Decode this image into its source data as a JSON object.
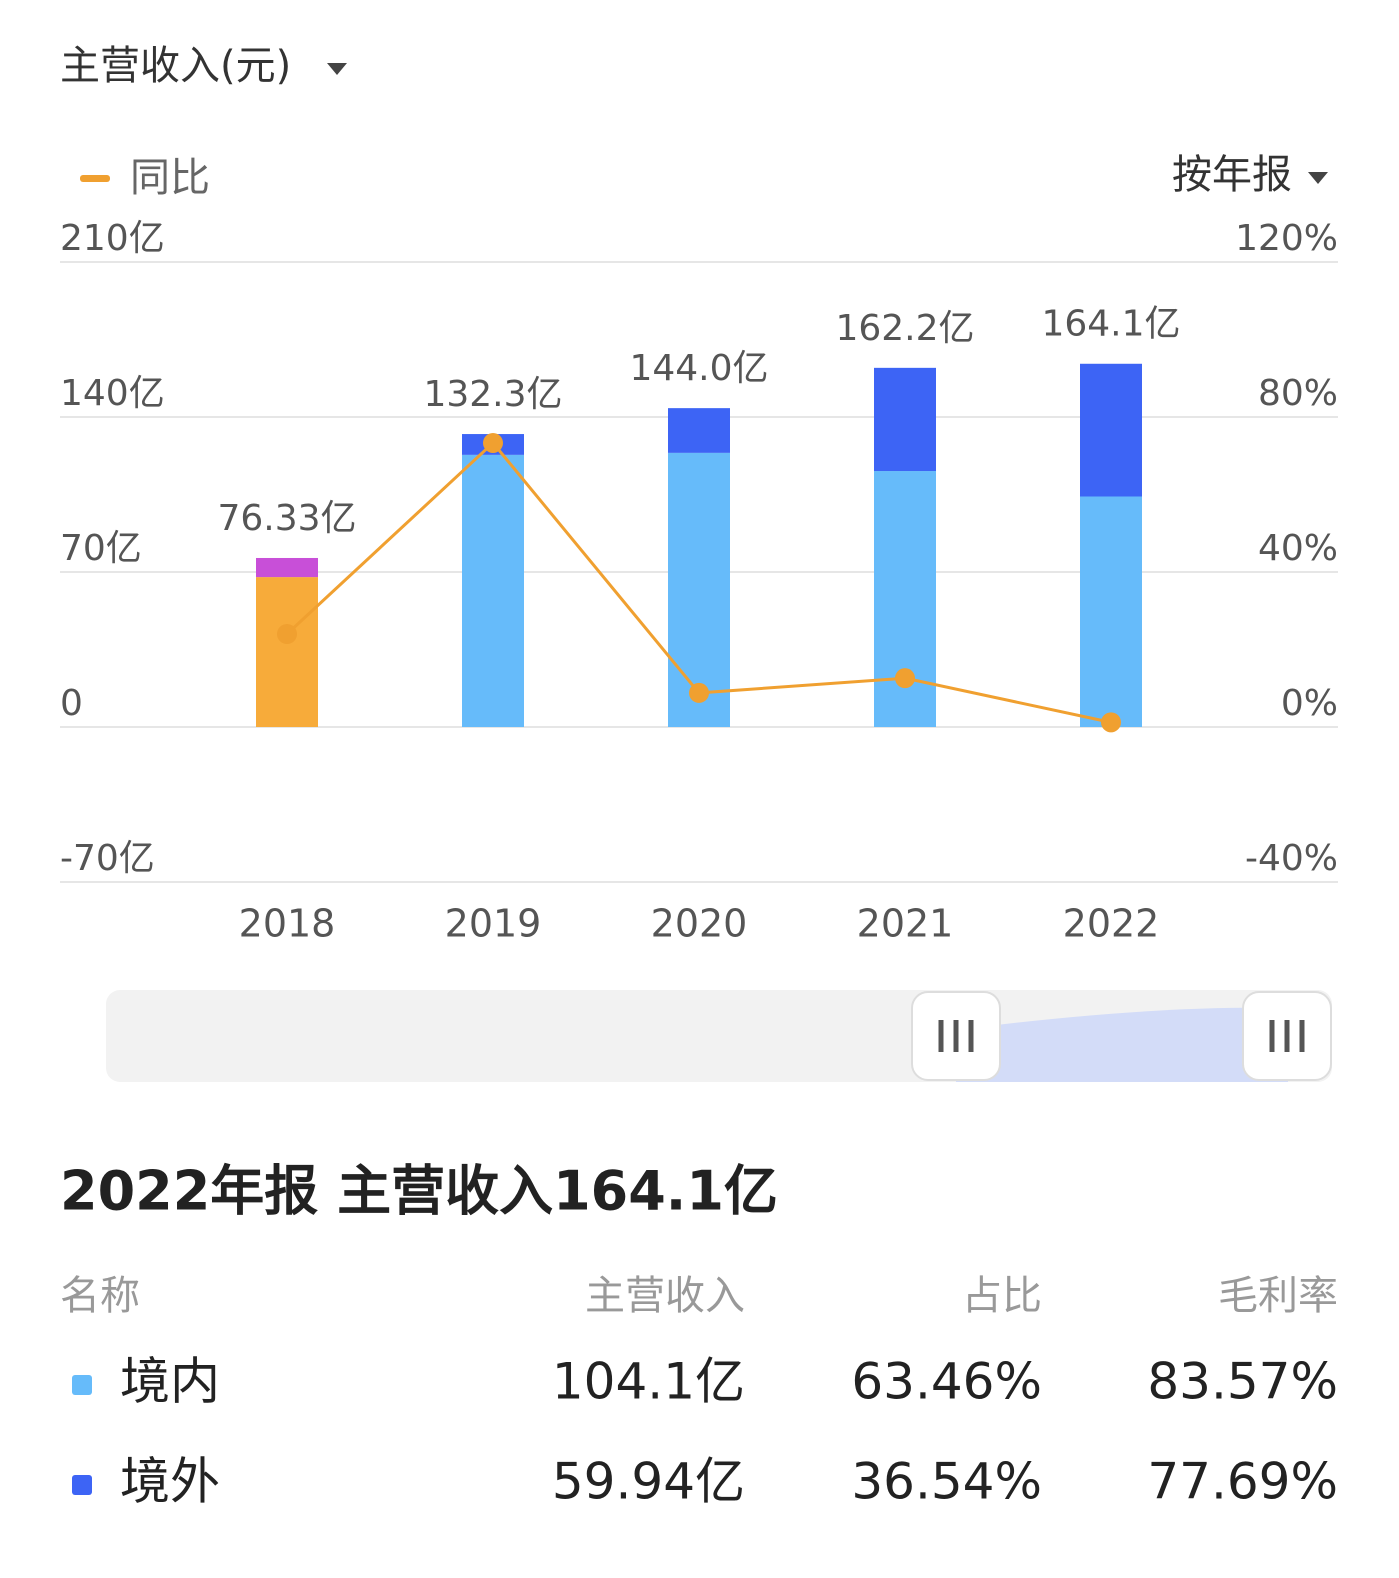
{
  "header": {
    "title": "主营收入(元)",
    "period_selector": "按年报"
  },
  "chart_data": {
    "type": "bar",
    "stacked": true,
    "categories": [
      "2018",
      "2019",
      "2020",
      "2021",
      "2022"
    ],
    "series": [
      {
        "color": "#f7ab3a",
        "values": [
          67.7,
          null,
          null,
          null,
          null
        ]
      },
      {
        "color": "#c84fd8",
        "values": [
          8.63,
          null,
          null,
          null,
          null
        ]
      },
      {
        "color": "#66bbfa",
        "values": [
          null,
          122.9,
          123.8,
          115.6,
          104.1
        ]
      },
      {
        "color": "#3d64f5",
        "values": [
          null,
          9.4,
          20.2,
          46.6,
          59.94
        ]
      },
      {
        "name": "同比",
        "type": "line",
        "axis": "y2",
        "color": "#f0a030",
        "values": [
          24.0,
          73.3,
          8.8,
          12.6,
          1.2
        ]
      }
    ],
    "totals": {
      "values": [
        76.33,
        132.3,
        144.0,
        162.2,
        164.1
      ],
      "value_labels": [
        "76.33亿",
        "132.3亿",
        "144.0亿",
        "162.2亿",
        "164.1亿"
      ]
    },
    "ylim": [
      -70,
      210
    ],
    "yticks": [
      {
        "value": -70,
        "label": "-70亿"
      },
      0,
      {
        "value": 70,
        "label": "70亿"
      },
      {
        "value": 140,
        "label": "140亿"
      },
      {
        "value": 210,
        "label": "210亿"
      }
    ],
    "y2lim": [
      -40,
      120
    ],
    "y2ticks": [
      {
        "value": -40,
        "label": "-40%"
      },
      {
        "value": 0,
        "label": "0%"
      },
      {
        "value": 40,
        "label": "40%"
      },
      {
        "value": 80,
        "label": "80%"
      },
      {
        "value": 120,
        "label": "120%"
      }
    ],
    "grid": true
  },
  "detail": {
    "heading": "2022年报 主营收入164.1亿",
    "columns": [
      "名称",
      "主营收入",
      "占比",
      "毛利率"
    ],
    "rows": [
      {
        "color": "#66bbfa",
        "cells": [
          "境内",
          "104.1亿",
          "63.46%",
          "83.57%"
        ]
      },
      {
        "color": "#3d64f5",
        "cells": [
          "境外",
          "59.94亿",
          "36.54%",
          "77.69%"
        ]
      }
    ]
  }
}
